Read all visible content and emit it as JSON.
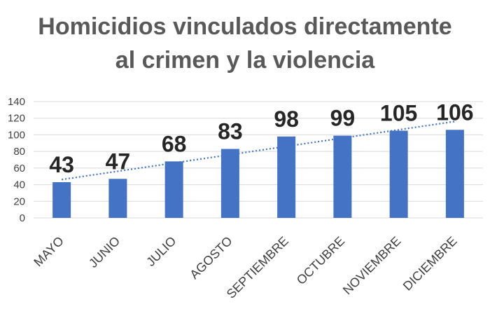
{
  "chart_data": {
    "type": "bar",
    "title_line1": "Homicidios vinculados directamente",
    "title_line2": "al crimen y la violencia",
    "categories": [
      "MAYO",
      "JUNIO",
      "JULIO",
      "AGOSTO",
      "SEPTIEMBRE",
      "OCTUBRE",
      "NOVIEMBRE",
      "DICIEMBRE"
    ],
    "values": [
      43,
      47,
      68,
      83,
      98,
      99,
      105,
      106
    ],
    "data_labels": [
      "43",
      "47",
      "68",
      "83",
      "98",
      "99",
      "105",
      "106"
    ],
    "yticks": [
      "0",
      "20",
      "40",
      "60",
      "80",
      "100",
      "120",
      "140"
    ],
    "ylim": [
      0,
      140
    ],
    "bar_color": "#4472C4",
    "trendline": {
      "type": "linear",
      "style": "dotted",
      "color": "#4472C4"
    },
    "grid": true,
    "legend": "none"
  }
}
